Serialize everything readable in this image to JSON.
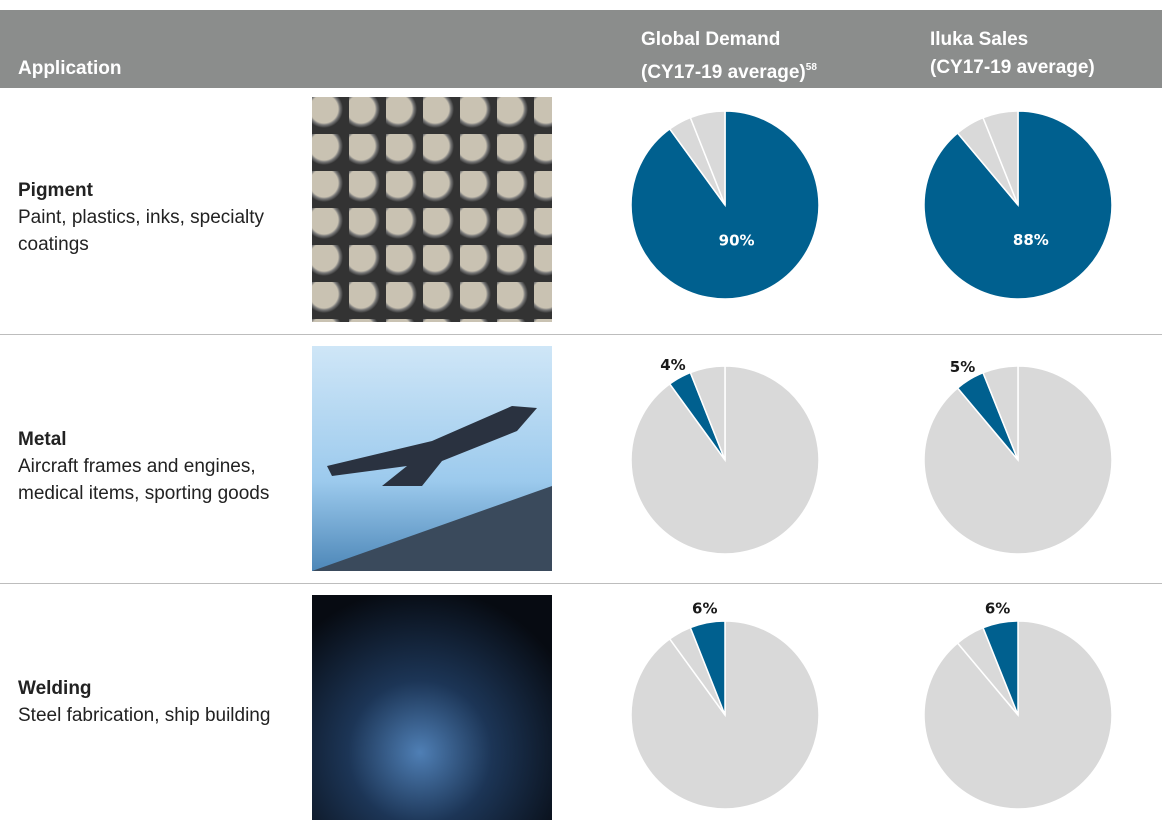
{
  "header": {
    "application": "Application",
    "global_demand": {
      "title": "Global Demand",
      "subtitle": "(CY17-19 average)",
      "footnote": "58"
    },
    "iluka_sales": {
      "title": "Iluka Sales",
      "subtitle": "(CY17-19 average)"
    }
  },
  "rows": [
    {
      "name": "Pigment",
      "description": "Paint, plastics, inks, specialty coatings",
      "global_demand": {
        "value": 90,
        "label": "90%"
      },
      "iluka_sales": {
        "value": 88,
        "label": "88%"
      }
    },
    {
      "name": "Metal",
      "description": "Aircraft frames and engines, medical items, sporting goods",
      "global_demand": {
        "value": 4,
        "label": "4%"
      },
      "iluka_sales": {
        "value": 5,
        "label": "5%"
      }
    },
    {
      "name": "Welding",
      "description": "Steel fabrication, ship building",
      "global_demand": {
        "value": 6,
        "label": "6%"
      },
      "iluka_sales": {
        "value": 6,
        "label": "6%"
      }
    }
  ],
  "colors": {
    "highlight": "#00608f",
    "other": "#d9d9d9"
  }
}
